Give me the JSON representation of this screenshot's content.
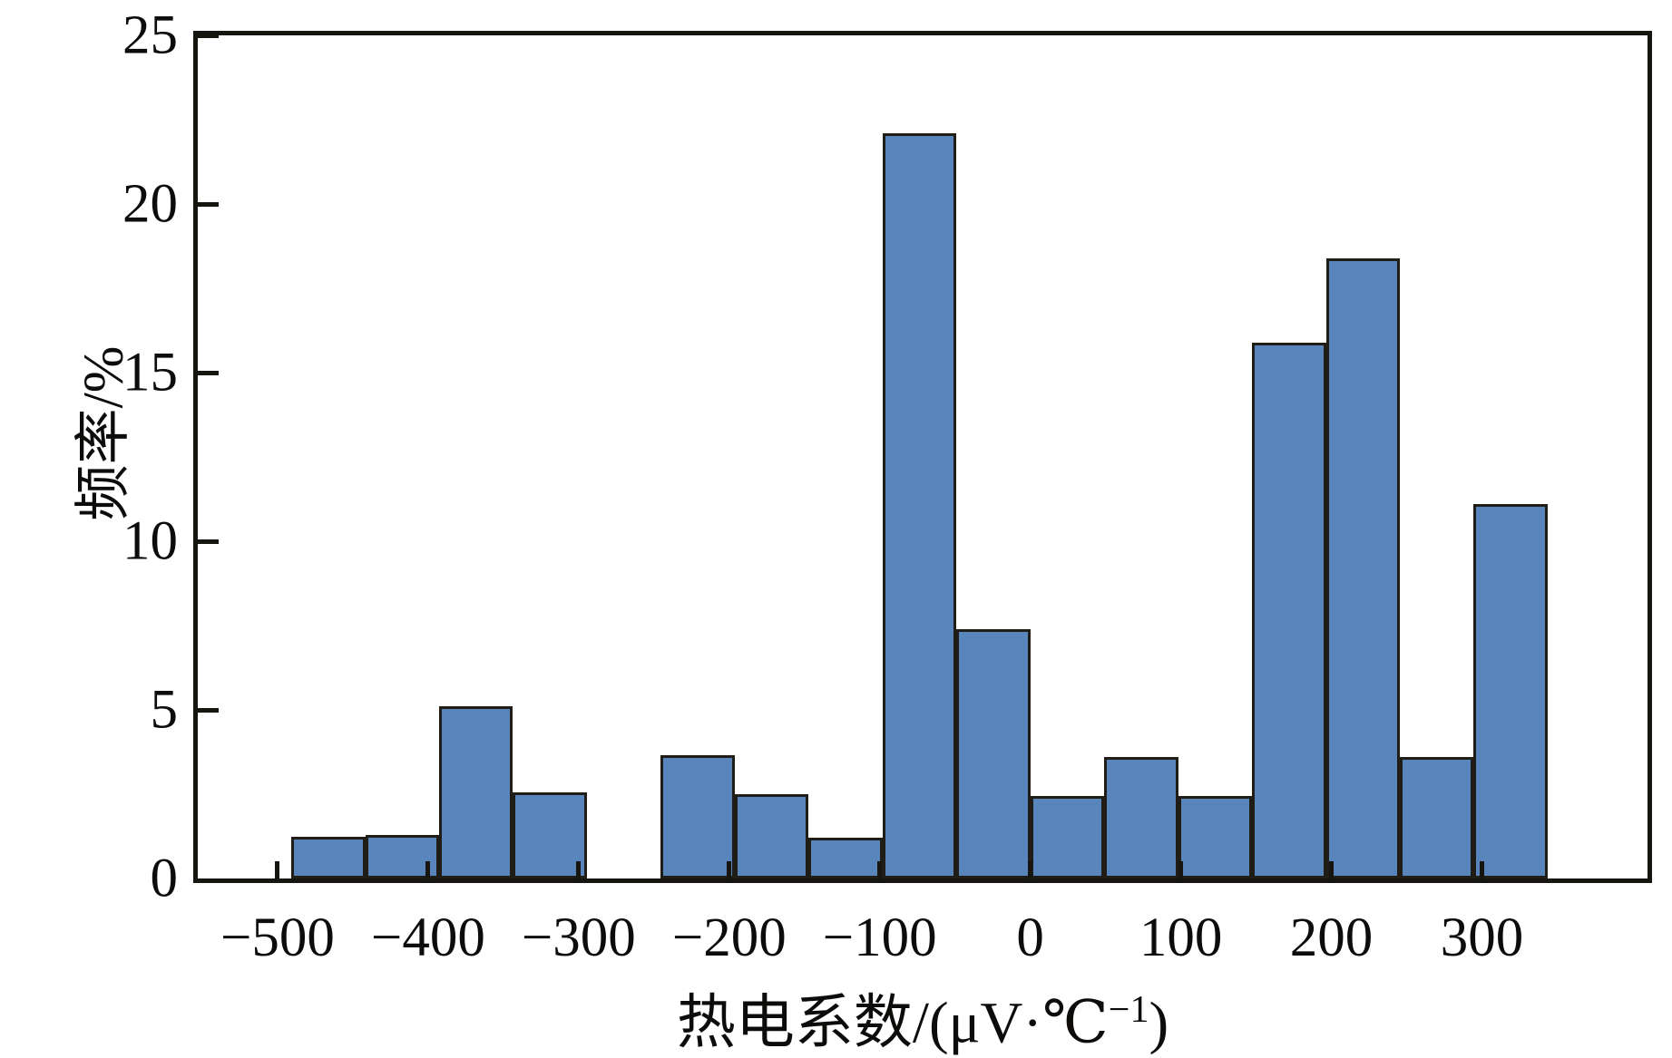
{
  "figure": {
    "background": "#ffffff"
  },
  "chart_data": {
    "type": "bar",
    "subtype": "histogram",
    "title": "",
    "xlabel": "热电系数/(μV·℃⁻¹)",
    "ylabel": "频率/%",
    "xlim": [
      -553,
      410
    ],
    "ylim": [
      0,
      25
    ],
    "x_ticks": [
      -500,
      -400,
      -300,
      -200,
      -100,
      0,
      100,
      200,
      300
    ],
    "x_tick_labels": [
      "−500",
      "−400",
      "−300",
      "−200",
      "−100",
      "0",
      "100",
      "200",
      "300"
    ],
    "y_ticks": [
      0,
      5,
      10,
      15,
      20,
      25
    ],
    "y_tick_labels": [
      "0",
      "5",
      "10",
      "15",
      "20",
      "25"
    ],
    "bin_edges": [
      -490.9,
      -441.8,
      -392.7,
      -343.6,
      -294.6,
      -245.5,
      -196.4,
      -147.3,
      -98.2,
      -49.1,
      0,
      49.1,
      98.2,
      147.3,
      196.4,
      245.5,
      294.5,
      343.6
    ],
    "values": [
      1.25,
      1.3,
      5.1,
      2.55,
      0,
      3.65,
      2.5,
      1.2,
      22.1,
      7.4,
      2.45,
      3.6,
      2.45,
      15.9,
      18.4,
      3.6,
      11.1
    ],
    "bar_color": "#5885BC",
    "bar_edge_color": "#201d17",
    "axis_color": "#17150f",
    "tick_direction": "in",
    "grid": false,
    "legend_position": "none"
  }
}
